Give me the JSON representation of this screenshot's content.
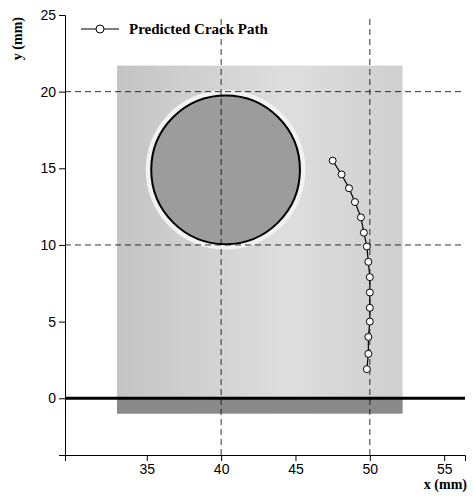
{
  "chart_data": {
    "type": "line",
    "x_label": "x (mm)",
    "y_label": "y (mm)",
    "xlim": [
      29.5,
      56.4
    ],
    "ylim": [
      -3.7,
      25
    ],
    "xticks": [
      35,
      40,
      45,
      50,
      55
    ],
    "yticks": [
      0,
      5,
      10,
      15,
      20,
      25
    ],
    "grid": true,
    "legend": "upper left",
    "hole": {
      "cx": 40.3,
      "cy": 14.9,
      "r": 5
    },
    "series": [
      {
        "name": "Predicted Crack Path",
        "color": "#000000",
        "marker": "circle",
        "line_style": "solid",
        "x": [
          49.8,
          49.9,
          49.9,
          50.0,
          50.0,
          50.0,
          50.0,
          49.9,
          49.8,
          49.6,
          49.4,
          49.0,
          48.6,
          48.1,
          47.5
        ],
        "values": [
          1.9,
          2.9,
          4.0,
          5.0,
          5.9,
          6.9,
          7.9,
          8.9,
          9.9,
          10.8,
          11.8,
          12.8,
          13.7,
          14.6,
          15.5
        ]
      }
    ]
  }
}
